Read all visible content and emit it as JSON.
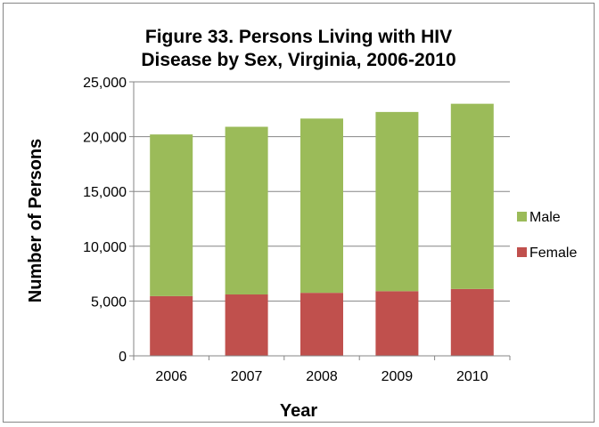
{
  "chart_data": {
    "type": "bar",
    "stacked": true,
    "title_lines": [
      "Figure 33. Persons Living with HIV",
      "Disease by Sex, Virginia, 2006-2010"
    ],
    "xlabel": "Year",
    "ylabel": "Number of Persons",
    "categories": [
      "2006",
      "2007",
      "2008",
      "2009",
      "2010"
    ],
    "ylim": [
      0,
      25000
    ],
    "yticks": [
      0,
      5000,
      10000,
      15000,
      20000,
      25000
    ],
    "ytick_labels": [
      "0",
      "5,000",
      "10,000",
      "15,000",
      "20,000",
      "25,000"
    ],
    "grid": true,
    "legend_position": "right",
    "series": [
      {
        "name": "Female",
        "color": "#c0504d",
        "values": [
          5450,
          5600,
          5750,
          5900,
          6100
        ]
      },
      {
        "name": "Male",
        "color": "#9bbb59",
        "values": [
          14750,
          15300,
          15900,
          16350,
          16900
        ]
      }
    ],
    "legend_order": [
      "Male",
      "Female"
    ]
  }
}
